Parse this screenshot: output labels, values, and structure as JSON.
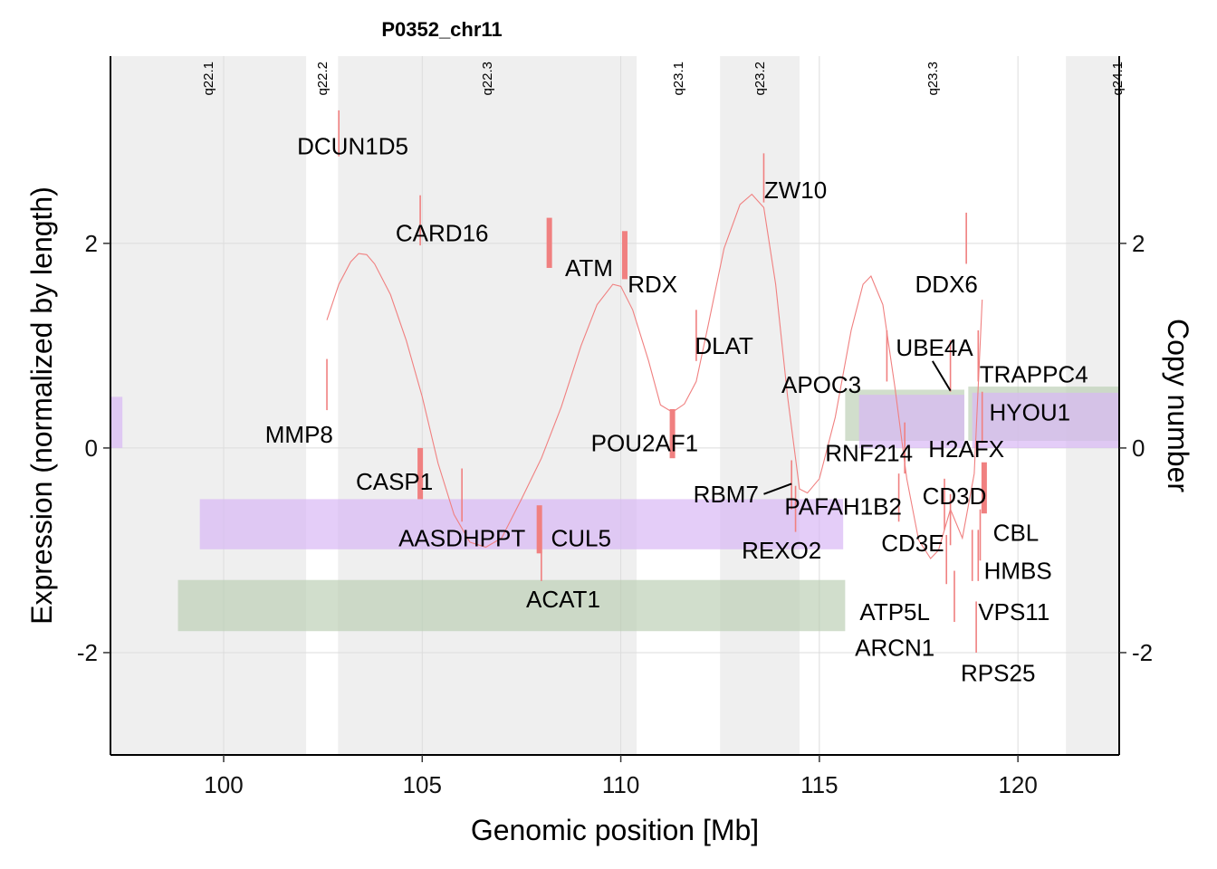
{
  "chart_data": {
    "type": "line",
    "title": "P0352_chr11",
    "xlabel": "Genomic position [Mb]",
    "ylabel": "Expression (normalized by length)",
    "y2label": "Copy number",
    "xlim": [
      97.15,
      122.55
    ],
    "ylim": [
      -3.0,
      3.83
    ],
    "x_ticks": [
      100,
      105,
      110,
      115,
      120
    ],
    "x_tick_labels": [
      "100",
      "105",
      "110",
      "115",
      "120"
    ],
    "y_ticks": [
      -2,
      0,
      2
    ],
    "y_tick_labels": [
      "-2",
      "0",
      "2"
    ],
    "y2_ticks": [
      -2,
      0,
      2
    ],
    "y2_tick_labels": [
      "-2",
      "0",
      "2"
    ],
    "grid": true,
    "colors": {
      "expression": "#f08080",
      "cnv_purple": "#d9b8f5",
      "cnv_green": "#b8ccb0",
      "band_gray": "#efefef",
      "band_white": "#ffffff"
    },
    "cytobands": [
      {
        "name": "q22.1",
        "start": 97.15,
        "end": 102.08,
        "shade": "gray"
      },
      {
        "name": "q22.2",
        "start": 102.08,
        "end": 102.88,
        "shade": "white"
      },
      {
        "name": "q22.3",
        "start": 102.88,
        "end": 110.4,
        "shade": "gray"
      },
      {
        "name": "q23.1",
        "start": 110.4,
        "end": 112.5,
        "shade": "white"
      },
      {
        "name": "q23.2",
        "start": 112.5,
        "end": 114.5,
        "shade": "gray"
      },
      {
        "name": "q23.3",
        "start": 114.5,
        "end": 121.21,
        "shade": "white"
      },
      {
        "name": "q24.1",
        "start": 121.21,
        "end": 122.55,
        "shade": "gray"
      }
    ],
    "cnv_segments": [
      {
        "track": "purple",
        "start": 97.15,
        "end": 97.45,
        "ymin": 0.0,
        "ymax": 0.5
      },
      {
        "track": "purple",
        "start": 99.4,
        "end": 115.6,
        "ymin": -0.99,
        "ymax": -0.5
      },
      {
        "track": "green",
        "start": 98.85,
        "end": 115.65,
        "ymin": -1.79,
        "ymax": -1.29
      },
      {
        "track": "green",
        "start": 115.65,
        "end": 118.65,
        "ymin": 0.07,
        "ymax": 0.57
      },
      {
        "track": "purple",
        "start": 116.0,
        "end": 118.65,
        "ymin": 0.0,
        "ymax": 0.52
      },
      {
        "track": "green",
        "start": 118.75,
        "end": 122.55,
        "ymin": 0.07,
        "ymax": 0.6
      },
      {
        "track": "purple",
        "start": 118.85,
        "end": 122.55,
        "ymin": 0.0,
        "ymax": 0.54
      }
    ],
    "smooth_expression": {
      "name": "expression-trend",
      "x": [
        102.6,
        102.9,
        103.2,
        103.4,
        103.6,
        103.8,
        104.2,
        104.6,
        105.0,
        105.4,
        105.8,
        106.2,
        106.6,
        107.0,
        107.5,
        108.0,
        108.5,
        109.0,
        109.4,
        109.8,
        110.0,
        110.3,
        110.7,
        111.0,
        111.3,
        111.6,
        111.9,
        112.2,
        112.6,
        113.0,
        113.3,
        113.6,
        113.9,
        114.2,
        114.5,
        114.7,
        115.0,
        115.4,
        115.8,
        116.1,
        116.3,
        116.6,
        116.9,
        117.2,
        117.5,
        117.8,
        118.0,
        118.3,
        118.6,
        118.9,
        119.1
      ],
      "y": [
        1.25,
        1.6,
        1.82,
        1.9,
        1.89,
        1.8,
        1.5,
        1.05,
        0.5,
        -0.15,
        -0.65,
        -0.92,
        -0.97,
        -0.88,
        -0.5,
        -0.1,
        0.4,
        1.0,
        1.4,
        1.6,
        1.58,
        1.35,
        0.85,
        0.42,
        0.35,
        0.43,
        0.65,
        1.2,
        1.95,
        2.38,
        2.48,
        2.35,
        1.6,
        0.5,
        -0.4,
        -0.44,
        -0.3,
        0.3,
        1.15,
        1.6,
        1.68,
        1.4,
        0.6,
        -0.3,
        -0.9,
        -1.08,
        -1.0,
        -0.6,
        -0.88,
        -0.25,
        1.45
      ]
    },
    "genes": [
      {
        "name": "DCUN1D5",
        "x": 102.9,
        "y": 2.95,
        "bar_ymin": 2.85,
        "bar_ymax": 3.3,
        "width": "thin",
        "label_x": 103.25,
        "label_y": 2.95
      },
      {
        "name": "CARD16",
        "x": 104.95,
        "y": 2.1,
        "bar_ymin": 1.98,
        "bar_ymax": 2.47,
        "width": "thin",
        "label_x": 105.5,
        "label_y": 2.1
      },
      {
        "name": "ATM",
        "x": 108.2,
        "y": 2.0,
        "bar_ymin": 1.76,
        "bar_ymax": 2.25,
        "width": "thick",
        "label_x": 109.2,
        "label_y": 1.76
      },
      {
        "name": "RDX",
        "x": 110.1,
        "y": 1.9,
        "bar_ymin": 1.65,
        "bar_ymax": 2.12,
        "width": "thick",
        "label_x": 110.8,
        "label_y": 1.6
      },
      {
        "name": "MMP8",
        "x": 102.6,
        "y": 0.64,
        "bar_ymin": 0.37,
        "bar_ymax": 0.87,
        "width": "thin",
        "label_x": 101.9,
        "label_y": 0.13
      },
      {
        "name": "DLAT",
        "x": 111.9,
        "y": 1.1,
        "bar_ymin": 0.85,
        "bar_ymax": 1.35,
        "width": "thin",
        "label_x": 112.6,
        "label_y": 1.0
      },
      {
        "name": "ZW10",
        "x": 113.6,
        "y": 2.65,
        "bar_ymin": 2.4,
        "bar_ymax": 2.88,
        "width": "thin",
        "label_x": 114.4,
        "label_y": 2.52
      },
      {
        "name": "POU2AF1",
        "x": 111.3,
        "y": 0.13,
        "bar_ymin": -0.1,
        "bar_ymax": 0.38,
        "width": "thick",
        "label_x": 110.6,
        "label_y": 0.05
      },
      {
        "name": "CASP1",
        "x": 104.95,
        "y": -0.25,
        "bar_ymin": -0.5,
        "bar_ymax": 0.0,
        "width": "thick",
        "label_x": 104.3,
        "label_y": -0.33
      },
      {
        "name": "AASDHPPT",
        "x": 106.0,
        "y": -0.45,
        "bar_ymin": -0.72,
        "bar_ymax": -0.2,
        "width": "thin",
        "label_x": 106.0,
        "label_y": -0.88
      },
      {
        "name": "CUL5",
        "x": 107.95,
        "y": -0.8,
        "bar_ymin": -1.03,
        "bar_ymax": -0.56,
        "width": "thick",
        "label_x": 109.0,
        "label_y": -0.88
      },
      {
        "name": "ACAT1",
        "x": 108.0,
        "y": -1.05,
        "bar_ymin": -1.3,
        "bar_ymax": -0.8,
        "width": "thin",
        "label_x": 108.55,
        "label_y": -1.48
      },
      {
        "name": "RBM7",
        "x": 114.3,
        "y": -0.35,
        "bar_ymin": -0.6,
        "bar_ymax": -0.12,
        "width": "thin",
        "label_x": 112.65,
        "label_y": -0.45
      },
      {
        "name": "REXO2",
        "x": 114.4,
        "y": -0.6,
        "bar_ymin": -0.82,
        "bar_ymax": -0.37,
        "width": "thin",
        "label_x": 114.05,
        "label_y": -1.0
      },
      {
        "name": "PAFAH1B2",
        "x": 117.0,
        "y": -0.5,
        "bar_ymin": -0.72,
        "bar_ymax": -0.25,
        "width": "thin",
        "label_x": 115.6,
        "label_y": -0.57
      },
      {
        "name": "APOC3",
        "x": 116.7,
        "y": 0.9,
        "bar_ymin": 0.65,
        "bar_ymax": 1.15,
        "width": "thin",
        "label_x": 115.05,
        "label_y": 0.62
      },
      {
        "name": "RNF214",
        "x": 117.15,
        "y": 0.0,
        "bar_ymin": -0.25,
        "bar_ymax": 0.25,
        "width": "thin",
        "label_x": 116.25,
        "label_y": -0.05
      },
      {
        "name": "UBE4A",
        "x": 118.3,
        "y": 0.8,
        "bar_ymin": 0.55,
        "bar_ymax": 1.05,
        "width": "thin",
        "label_x": 117.9,
        "label_y": 0.98
      },
      {
        "name": "DDX6",
        "x": 118.7,
        "y": 2.05,
        "bar_ymin": 1.8,
        "bar_ymax": 2.3,
        "width": "thin",
        "label_x": 118.2,
        "label_y": 1.6
      },
      {
        "name": "TRAPPC4",
        "x": 119.0,
        "y": 0.9,
        "bar_ymin": 0.65,
        "bar_ymax": 1.15,
        "width": "thin",
        "label_x": 120.4,
        "label_y": 0.72
      },
      {
        "name": "HYOU1",
        "x": 119.1,
        "y": 0.3,
        "bar_ymin": 0.05,
        "bar_ymax": 0.55,
        "width": "thin",
        "label_x": 120.3,
        "label_y": 0.35
      },
      {
        "name": "H2AFX",
        "x": 118.15,
        "y": -0.55,
        "bar_ymin": -0.8,
        "bar_ymax": -0.3,
        "width": "thin",
        "label_x": 118.7,
        "label_y": -0.01
      },
      {
        "name": "CD3D",
        "x": 119.15,
        "y": -0.4,
        "bar_ymin": -0.64,
        "bar_ymax": -0.14,
        "width": "thick",
        "label_x": 118.4,
        "label_y": -0.47
      },
      {
        "name": "CD3E",
        "x": 118.3,
        "y": -0.7,
        "bar_ymin": -0.95,
        "bar_ymax": -0.45,
        "width": "thin",
        "label_x": 117.35,
        "label_y": -0.93
      },
      {
        "name": "CBL",
        "x": 119.05,
        "y": -0.85,
        "bar_ymin": -1.1,
        "bar_ymax": -0.6,
        "width": "thin",
        "label_x": 119.95,
        "label_y": -0.83
      },
      {
        "name": "HMBS",
        "x": 119.0,
        "y": -1.05,
        "bar_ymin": -1.3,
        "bar_ymax": -0.8,
        "width": "thin",
        "label_x": 120.0,
        "label_y": -1.2
      },
      {
        "name": "ATP5L",
        "x": 118.2,
        "y": -1.1,
        "bar_ymin": -1.33,
        "bar_ymax": -0.85,
        "width": "thin",
        "label_x": 116.9,
        "label_y": -1.6
      },
      {
        "name": "ARCN1",
        "x": 118.4,
        "y": -1.45,
        "bar_ymin": -1.7,
        "bar_ymax": -1.2,
        "width": "thin",
        "label_x": 116.9,
        "label_y": -1.95
      },
      {
        "name": "VPS11",
        "x": 118.85,
        "y": -1.05,
        "bar_ymin": -1.3,
        "bar_ymax": -0.8,
        "width": "thin",
        "label_x": 119.9,
        "label_y": -1.6
      },
      {
        "name": "RPS25",
        "x": 118.95,
        "y": -1.75,
        "bar_ymin": -2.0,
        "bar_ymax": -1.5,
        "width": "thin",
        "label_x": 119.5,
        "label_y": -2.2
      }
    ],
    "leader_lines": [
      {
        "gene": "UBE4A",
        "x1": 117.85,
        "y1": 0.85,
        "x2": 118.3,
        "y2": 0.56
      },
      {
        "gene": "RBM7",
        "x1": 113.6,
        "y1": -0.45,
        "x2": 114.3,
        "y2": -0.35
      }
    ]
  }
}
